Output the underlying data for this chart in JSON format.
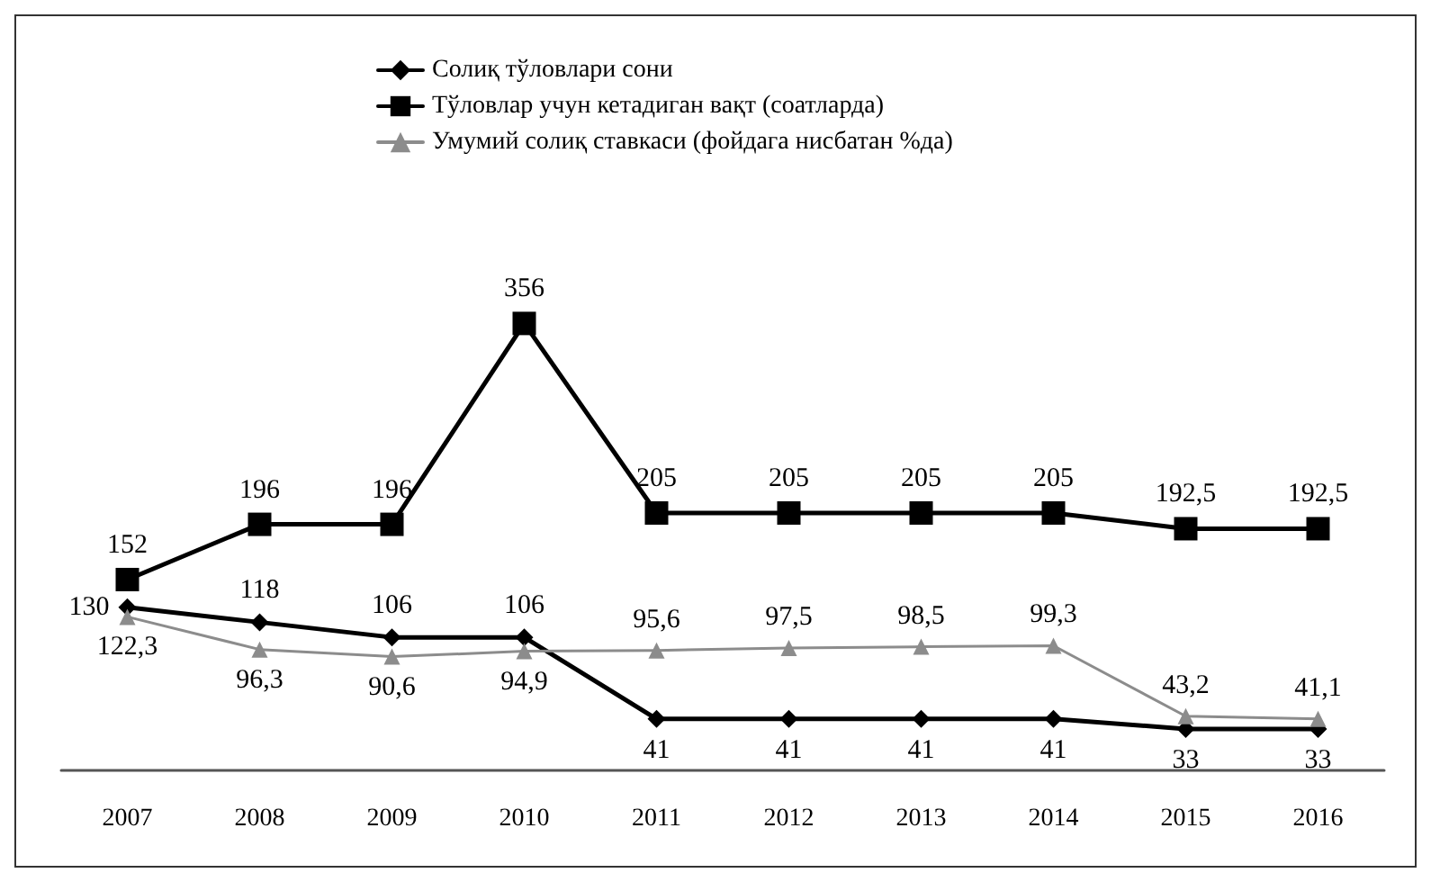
{
  "chart_data": {
    "type": "line",
    "categories": [
      "2007",
      "2008",
      "2009",
      "2010",
      "2011",
      "2012",
      "2013",
      "2014",
      "2015",
      "2016"
    ],
    "series": [
      {
        "name": "Солиқ тўловлари сони",
        "color": "#000000",
        "marker": "diamond",
        "values": [
          130,
          118,
          106,
          106,
          41,
          41,
          41,
          41,
          33,
          33
        ],
        "value_labels": [
          "130",
          "118",
          "106",
          "106",
          "41",
          "41",
          "41",
          "41",
          "33",
          "33"
        ]
      },
      {
        "name": "Тўловлар учун кетадиган вақт (соатларда)",
        "color": "#000000",
        "marker": "square",
        "values": [
          152,
          196,
          196,
          356,
          205,
          205,
          205,
          205,
          192.5,
          192.5
        ],
        "value_labels": [
          "152",
          "196",
          "196",
          "356",
          "205",
          "205",
          "205",
          "205",
          "192,5",
          "192,5"
        ]
      },
      {
        "name": "Умумий солиқ ставкаси (фойдага нисбатан %да)",
        "color": "#8c8c8c",
        "marker": "triangle",
        "values": [
          122.3,
          96.3,
          90.6,
          94.9,
          95.6,
          97.5,
          98.5,
          99.3,
          43.2,
          41.1
        ],
        "value_labels": [
          "122,3",
          "96,3",
          "90,6",
          "94,9",
          "95,6",
          "97,5",
          "98,5",
          "99,3",
          "43,2",
          "41,1"
        ]
      }
    ],
    "tick_labels": "x",
    "grid": false,
    "legend": "top",
    "line_style": "solid"
  }
}
